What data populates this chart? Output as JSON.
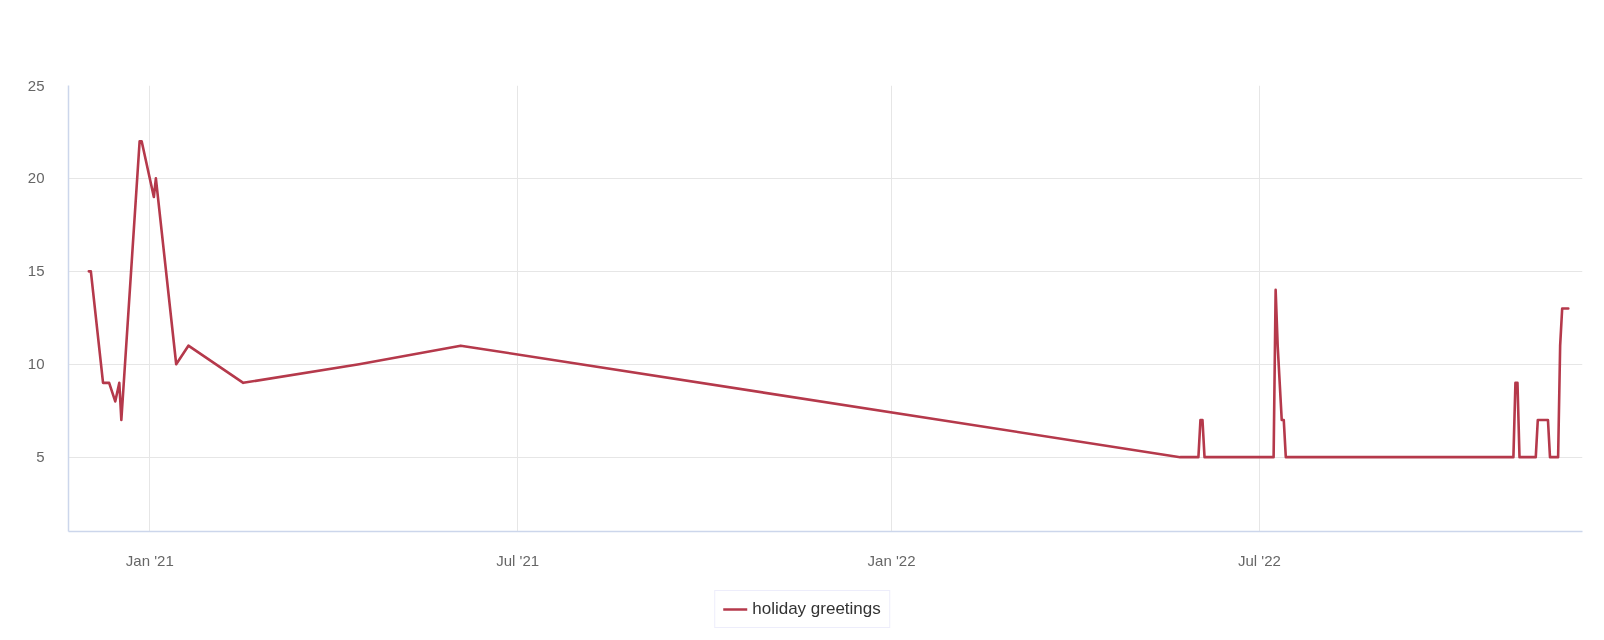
{
  "chart_data": {
    "type": "line",
    "x": [
      "2020-12-02",
      "2020-12-03",
      "2020-12-09",
      "2020-12-12",
      "2020-12-15",
      "2020-12-17",
      "2020-12-18",
      "2020-12-27",
      "2020-12-28",
      "2021-01-03",
      "2021-01-04",
      "2021-01-14",
      "2021-01-20",
      "2021-02-16",
      "2021-04-14",
      "2021-06-03",
      "2022-05-23",
      "2022-06-01",
      "2022-06-02",
      "2022-06-03",
      "2022-06-04",
      "2022-07-08",
      "2022-07-09",
      "2022-07-10",
      "2022-07-11",
      "2022-07-12",
      "2022-07-13",
      "2022-07-14",
      "2022-11-03",
      "2022-11-04",
      "2022-11-05",
      "2022-11-06",
      "2022-11-14",
      "2022-11-15",
      "2022-11-20",
      "2022-11-21",
      "2022-11-25",
      "2022-11-26",
      "2022-11-27",
      "2022-11-30"
    ],
    "series": [
      {
        "name": "holiday greetings",
        "color": "#b5394b",
        "values": [
          15,
          15,
          9,
          9,
          8,
          9,
          7,
          22,
          22,
          19,
          20,
          10,
          11,
          9,
          10,
          11,
          5,
          5,
          7,
          7,
          5,
          5,
          14,
          11,
          9,
          7,
          7,
          5,
          5,
          9,
          9,
          5,
          5,
          7,
          7,
          5,
          5,
          11,
          13,
          13
        ]
      }
    ],
    "xlim": [
      "2020-11-22",
      "2022-12-07"
    ],
    "xticks": [
      {
        "value": "2021-01-01",
        "label": "Jan '21"
      },
      {
        "value": "2021-07-01",
        "label": "Jul '21"
      },
      {
        "value": "2022-01-01",
        "label": "Jan '22"
      },
      {
        "value": "2022-07-01",
        "label": "Jul '22"
      }
    ],
    "ylim": [
      1,
      25
    ],
    "yticks": [
      5,
      10,
      15,
      20,
      25
    ],
    "grid": true,
    "legend": "bottom",
    "line_style": "solid"
  }
}
